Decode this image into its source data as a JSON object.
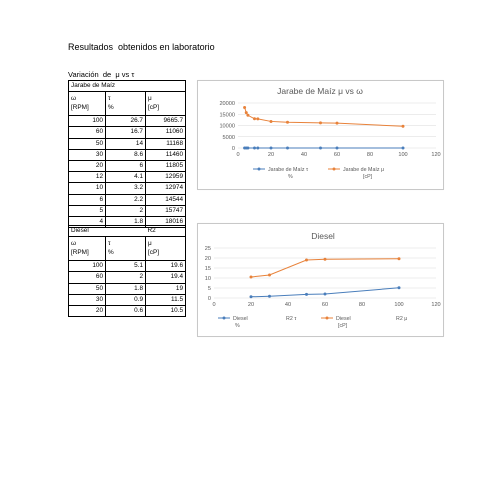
{
  "page": {
    "heading": "Resultados  obtenidos en laboratorio",
    "subheading": "Variación  de  μ vs τ"
  },
  "table_jarabe": {
    "title": "Jarabe de Maíz",
    "col1": [
      "ω",
      "[RPM]"
    ],
    "col2": [
      "τ",
      "%"
    ],
    "col3": [
      "μ",
      "[cP]"
    ],
    "rows": [
      [
        "100",
        "26.7",
        "9665.7"
      ],
      [
        "60",
        "16.7",
        "11060"
      ],
      [
        "50",
        "14",
        "11168"
      ],
      [
        "30",
        "8.6",
        "11460"
      ],
      [
        "20",
        "6",
        "11805"
      ],
      [
        "12",
        "4.1",
        "12959"
      ],
      [
        "10",
        "3.2",
        "12974"
      ],
      [
        "6",
        "2.2",
        "14544"
      ],
      [
        "5",
        "2",
        "15747"
      ],
      [
        "4",
        "1.8",
        "18016"
      ]
    ]
  },
  "table_diesel": {
    "title": "Diesel",
    "title2": "R2",
    "col1": [
      "ω",
      "[RPM]"
    ],
    "col2": [
      "τ",
      "%"
    ],
    "col3": [
      "μ",
      "[cP]"
    ],
    "rows": [
      [
        "100",
        "5.1",
        "19.6"
      ],
      [
        "60",
        "2",
        "19.4"
      ],
      [
        "50",
        "1.8",
        "19"
      ],
      [
        "30",
        "0.9",
        "11.5"
      ],
      [
        "20",
        "0.6",
        "10.5"
      ]
    ]
  },
  "chart_data": [
    {
      "type": "line",
      "title": "Jarabe de Maíz μ vs ω",
      "xlabel": "",
      "ylabel": "",
      "xlim": [
        0,
        120
      ],
      "ylim": [
        0,
        20000
      ],
      "xticks": [
        "0",
        "20",
        "40",
        "60",
        "80",
        "100",
        "120"
      ],
      "yticks": [
        "0",
        "5000",
        "10000",
        "15000",
        "20000"
      ],
      "grid": true,
      "legend_position": "bottom",
      "series": [
        {
          "name": "Jarabe de Maíz τ %",
          "legend_lines": [
            "Jarabe de Maíz τ",
            "%"
          ],
          "color": "#4a7ebb",
          "x": [
            100,
            60,
            50,
            30,
            20,
            12,
            10,
            6,
            5,
            4
          ],
          "y": [
            26.7,
            16.7,
            14,
            8.6,
            6,
            4.1,
            3.2,
            2.2,
            2,
            1.8
          ]
        },
        {
          "name": "Jarabe de Maíz μ [cP]",
          "legend_lines": [
            "Jarabe de Maíz μ",
            "[cP]"
          ],
          "color": "#e8823a",
          "x": [
            100,
            60,
            50,
            30,
            20,
            12,
            10,
            6,
            5,
            4
          ],
          "y": [
            9665.7,
            11060,
            11168,
            11460,
            11805,
            12959,
            12974,
            14544,
            15747,
            18016
          ]
        }
      ]
    },
    {
      "type": "line",
      "title": "Diesel",
      "xlabel": "",
      "ylabel": "",
      "xlim": [
        0,
        120
      ],
      "ylim": [
        0,
        25
      ],
      "xticks": [
        "0",
        "20",
        "40",
        "60",
        "80",
        "100",
        "120"
      ],
      "yticks": [
        "0",
        "5",
        "10",
        "15",
        "20",
        "25"
      ],
      "grid": true,
      "legend_position": "bottom",
      "series": [
        {
          "name": "Diesel R2 τ %",
          "legend_lines": [
            "Diesel",
            "%"
          ],
          "legend_extra": "R2 τ",
          "color": "#4a7ebb",
          "x": [
            20,
            30,
            50,
            60,
            100
          ],
          "y": [
            0.6,
            0.9,
            1.8,
            2,
            5.1
          ]
        },
        {
          "name": "Diesel R2 μ [cP]",
          "legend_lines": [
            "Diesel",
            "[cP]"
          ],
          "legend_extra": "R2 μ",
          "color": "#e8823a",
          "x": [
            20,
            30,
            50,
            60,
            100
          ],
          "y": [
            10.5,
            11.5,
            19,
            19.4,
            19.6
          ]
        }
      ]
    }
  ]
}
